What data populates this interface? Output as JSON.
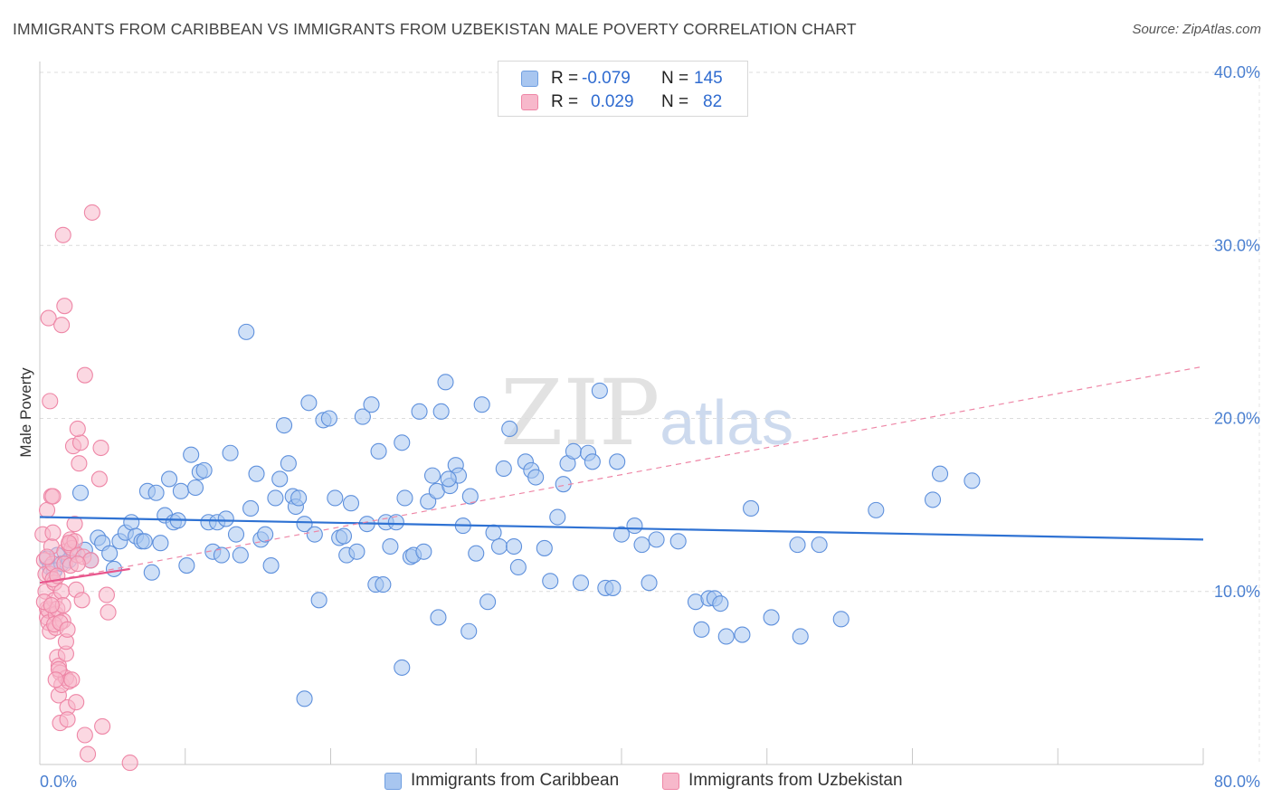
{
  "title": "IMMIGRANTS FROM CARIBBEAN VS IMMIGRANTS FROM UZBEKISTAN MALE POVERTY CORRELATION CHART",
  "source": "Source: ZipAtlas.com",
  "watermark": {
    "zip": "ZIP",
    "atlas": "atlas"
  },
  "legend_top": {
    "rows": [
      {
        "r_label": "R =",
        "r_value": "-0.079",
        "n_label": "N =",
        "n_value": "145",
        "color": "#a8c6f0",
        "edge": "#6f9ee0"
      },
      {
        "r_label": "R =",
        "r_value": "0.029",
        "n_label": "N =",
        "n_value": "82",
        "color": "#f7b8cb",
        "edge": "#ee86a6"
      }
    ]
  },
  "legend_bottom": {
    "items": [
      {
        "label": "Immigrants from Caribbean",
        "color": "#a8c6f0",
        "edge": "#6f9ee0"
      },
      {
        "label": "Immigrants from Uzbekistan",
        "color": "#f7b8cb",
        "edge": "#ee86a6"
      }
    ]
  },
  "chart_data": {
    "type": "scatter",
    "title": "IMMIGRANTS FROM CARIBBEAN VS IMMIGRANTS FROM UZBEKISTAN MALE POVERTY CORRELATION CHART",
    "xlabel": "",
    "ylabel": "Male Poverty",
    "xlim": [
      0,
      80
    ],
    "ylim": [
      0,
      40
    ],
    "x_tick_labels": [
      "0.0%",
      "80.0%"
    ],
    "y_tick_labels": [
      "10.0%",
      "20.0%",
      "30.0%",
      "40.0%"
    ],
    "y_ticks": [
      10,
      20,
      30,
      40
    ],
    "grid": true,
    "series": [
      {
        "name": "Immigrants from Caribbean",
        "color": "#a8c6f0",
        "edge": "#5e90dc",
        "trend": {
          "x": [
            0,
            80
          ],
          "y": [
            14.3,
            13.0
          ],
          "color": "#2f72d3",
          "style": "solid"
        },
        "points": [
          [
            0.5,
            11.9
          ],
          [
            0.7,
            11.4
          ],
          [
            1.0,
            11.2
          ],
          [
            1.2,
            12.1
          ],
          [
            1.5,
            11.6
          ],
          [
            2.0,
            11.8
          ],
          [
            2.3,
            12.3
          ],
          [
            2.8,
            15.7
          ],
          [
            3.1,
            12.4
          ],
          [
            3.5,
            11.8
          ],
          [
            4.0,
            13.1
          ],
          [
            4.3,
            12.8
          ],
          [
            4.8,
            12.2
          ],
          [
            5.1,
            11.3
          ],
          [
            5.5,
            12.9
          ],
          [
            5.9,
            13.4
          ],
          [
            6.3,
            14.0
          ],
          [
            6.6,
            13.2
          ],
          [
            7.0,
            12.9
          ],
          [
            7.2,
            12.9
          ],
          [
            7.4,
            15.8
          ],
          [
            7.7,
            11.1
          ],
          [
            8.0,
            15.7
          ],
          [
            8.3,
            12.8
          ],
          [
            8.6,
            14.4
          ],
          [
            8.9,
            16.5
          ],
          [
            9.2,
            14.0
          ],
          [
            9.5,
            14.1
          ],
          [
            9.7,
            15.8
          ],
          [
            10.1,
            11.5
          ],
          [
            10.4,
            17.9
          ],
          [
            10.7,
            16.0
          ],
          [
            11.0,
            16.9
          ],
          [
            11.3,
            17.0
          ],
          [
            11.6,
            14.0
          ],
          [
            11.9,
            12.3
          ],
          [
            12.2,
            14.0
          ],
          [
            12.5,
            12.1
          ],
          [
            12.8,
            14.2
          ],
          [
            13.1,
            18.0
          ],
          [
            13.5,
            13.3
          ],
          [
            13.8,
            12.1
          ],
          [
            14.2,
            25.0
          ],
          [
            14.5,
            14.8
          ],
          [
            14.9,
            16.8
          ],
          [
            15.2,
            13.0
          ],
          [
            15.5,
            13.3
          ],
          [
            15.9,
            11.5
          ],
          [
            16.2,
            15.4
          ],
          [
            16.5,
            16.5
          ],
          [
            16.8,
            19.6
          ],
          [
            17.1,
            17.4
          ],
          [
            17.4,
            15.5
          ],
          [
            17.6,
            14.9
          ],
          [
            17.8,
            15.4
          ],
          [
            18.2,
            13.9
          ],
          [
            18.5,
            20.9
          ],
          [
            18.9,
            13.3
          ],
          [
            19.2,
            9.5
          ],
          [
            19.5,
            19.9
          ],
          [
            19.9,
            20.0
          ],
          [
            20.3,
            15.4
          ],
          [
            20.6,
            13.1
          ],
          [
            20.9,
            13.2
          ],
          [
            21.1,
            12.1
          ],
          [
            21.4,
            15.1
          ],
          [
            21.8,
            12.3
          ],
          [
            22.2,
            20.1
          ],
          [
            22.5,
            13.9
          ],
          [
            22.8,
            20.8
          ],
          [
            23.1,
            10.4
          ],
          [
            23.3,
            18.1
          ],
          [
            23.6,
            10.4
          ],
          [
            23.8,
            14.0
          ],
          [
            24.1,
            12.6
          ],
          [
            24.5,
            14.0
          ],
          [
            24.9,
            18.6
          ],
          [
            25.1,
            15.4
          ],
          [
            25.5,
            12.0
          ],
          [
            25.7,
            12.1
          ],
          [
            26.1,
            20.4
          ],
          [
            26.4,
            12.3
          ],
          [
            26.7,
            15.2
          ],
          [
            27.0,
            16.7
          ],
          [
            27.3,
            15.8
          ],
          [
            27.6,
            20.4
          ],
          [
            27.9,
            22.1
          ],
          [
            28.2,
            16.1
          ],
          [
            28.6,
            17.3
          ],
          [
            28.8,
            16.7
          ],
          [
            29.1,
            13.8
          ],
          [
            29.6,
            15.5
          ],
          [
            30.0,
            12.2
          ],
          [
            30.4,
            20.8
          ],
          [
            30.8,
            9.4
          ],
          [
            31.2,
            13.4
          ],
          [
            31.6,
            12.6
          ],
          [
            31.9,
            17.1
          ],
          [
            32.3,
            19.4
          ],
          [
            32.6,
            12.6
          ],
          [
            32.9,
            11.4
          ],
          [
            33.4,
            17.5
          ],
          [
            33.8,
            17.0
          ],
          [
            34.1,
            16.6
          ],
          [
            34.7,
            12.5
          ],
          [
            35.1,
            10.6
          ],
          [
            35.6,
            14.3
          ],
          [
            36.0,
            16.2
          ],
          [
            36.3,
            17.4
          ],
          [
            36.7,
            18.1
          ],
          [
            37.2,
            10.5
          ],
          [
            37.7,
            18.0
          ],
          [
            38.0,
            17.5
          ],
          [
            38.5,
            21.6
          ],
          [
            38.9,
            10.2
          ],
          [
            39.4,
            10.2
          ],
          [
            39.7,
            17.5
          ],
          [
            40.0,
            13.3
          ],
          [
            40.9,
            13.8
          ],
          [
            41.4,
            12.7
          ],
          [
            41.9,
            10.5
          ],
          [
            42.4,
            13.0
          ],
          [
            43.9,
            12.9
          ],
          [
            45.1,
            9.4
          ],
          [
            46.0,
            9.6
          ],
          [
            46.4,
            9.6
          ],
          [
            46.8,
            9.3
          ],
          [
            47.2,
            7.4
          ],
          [
            48.3,
            7.5
          ],
          [
            48.9,
            14.8
          ],
          [
            50.3,
            8.5
          ],
          [
            52.1,
            12.7
          ],
          [
            52.3,
            7.4
          ],
          [
            53.6,
            12.7
          ],
          [
            55.1,
            8.4
          ],
          [
            57.5,
            14.7
          ],
          [
            61.4,
            15.3
          ],
          [
            61.9,
            16.8
          ],
          [
            64.1,
            16.4
          ],
          [
            27.4,
            8.5
          ],
          [
            28.1,
            16.5
          ],
          [
            29.5,
            7.7
          ],
          [
            24.9,
            5.6
          ],
          [
            18.2,
            3.8
          ],
          [
            45.5,
            7.8
          ]
        ]
      },
      {
        "name": "Immigrants from Uzbekistan",
        "color": "#f7b8cb",
        "edge": "#ee86a6",
        "trend": {
          "x": [
            0,
            6.2
          ],
          "y": [
            10.5,
            11.3
          ],
          "color": "#e8558c",
          "style": "solid"
        },
        "trend_extended": {
          "x": [
            0,
            80
          ],
          "y": [
            10.5,
            23.0
          ],
          "color": "#ee86a6",
          "style": "dashed"
        },
        "points": [
          [
            0.2,
            13.3
          ],
          [
            0.3,
            11.8
          ],
          [
            0.4,
            11.0
          ],
          [
            0.4,
            10.0
          ],
          [
            0.5,
            9.0
          ],
          [
            0.5,
            8.5
          ],
          [
            0.6,
            8.9
          ],
          [
            0.6,
            8.2
          ],
          [
            0.7,
            7.7
          ],
          [
            0.7,
            11.0
          ],
          [
            0.8,
            15.5
          ],
          [
            0.8,
            12.6
          ],
          [
            0.9,
            11.6
          ],
          [
            0.9,
            13.4
          ],
          [
            1.0,
            10.5
          ],
          [
            1.0,
            9.5
          ],
          [
            1.1,
            8.7
          ],
          [
            1.1,
            7.9
          ],
          [
            1.2,
            9.0
          ],
          [
            1.2,
            6.2
          ],
          [
            1.3,
            5.7
          ],
          [
            1.3,
            4.0
          ],
          [
            1.4,
            5.3
          ],
          [
            1.4,
            2.4
          ],
          [
            1.5,
            4.6
          ],
          [
            1.5,
            10.0
          ],
          [
            1.6,
            9.2
          ],
          [
            1.6,
            8.3
          ],
          [
            1.7,
            12.3
          ],
          [
            1.7,
            11.6
          ],
          [
            1.8,
            6.4
          ],
          [
            1.8,
            5.0
          ],
          [
            1.9,
            3.3
          ],
          [
            1.9,
            2.6
          ],
          [
            2.0,
            4.8
          ],
          [
            2.0,
            12.7
          ],
          [
            2.1,
            13.0
          ],
          [
            2.1,
            11.5
          ],
          [
            2.2,
            12.5
          ],
          [
            2.3,
            18.4
          ],
          [
            2.4,
            12.9
          ],
          [
            2.5,
            3.6
          ],
          [
            2.5,
            10.1
          ],
          [
            2.6,
            12.1
          ],
          [
            2.7,
            17.4
          ],
          [
            2.8,
            18.6
          ],
          [
            2.9,
            9.5
          ],
          [
            3.0,
            12.0
          ],
          [
            3.1,
            1.7
          ],
          [
            3.3,
            0.6
          ],
          [
            3.5,
            11.8
          ],
          [
            3.6,
            31.9
          ],
          [
            4.1,
            16.5
          ],
          [
            4.2,
            18.3
          ],
          [
            4.3,
            2.2
          ],
          [
            4.6,
            9.8
          ],
          [
            4.7,
            8.8
          ],
          [
            6.2,
            0.1
          ],
          [
            1.6,
            30.6
          ],
          [
            1.7,
            26.5
          ],
          [
            0.6,
            25.8
          ],
          [
            1.5,
            25.4
          ],
          [
            3.1,
            22.5
          ],
          [
            0.7,
            21.0
          ],
          [
            2.6,
            19.4
          ],
          [
            0.5,
            14.7
          ],
          [
            0.9,
            15.5
          ],
          [
            2.4,
            13.9
          ],
          [
            0.3,
            9.4
          ],
          [
            0.8,
            9.2
          ],
          [
            1.0,
            8.1
          ],
          [
            1.4,
            8.2
          ],
          [
            1.8,
            7.1
          ],
          [
            1.3,
            5.5
          ],
          [
            1.1,
            4.9
          ],
          [
            2.2,
            4.9
          ],
          [
            0.9,
            10.7
          ],
          [
            1.2,
            10.9
          ],
          [
            2.0,
            12.8
          ],
          [
            0.5,
            12.0
          ],
          [
            2.6,
            11.6
          ],
          [
            1.9,
            7.8
          ]
        ]
      }
    ]
  }
}
